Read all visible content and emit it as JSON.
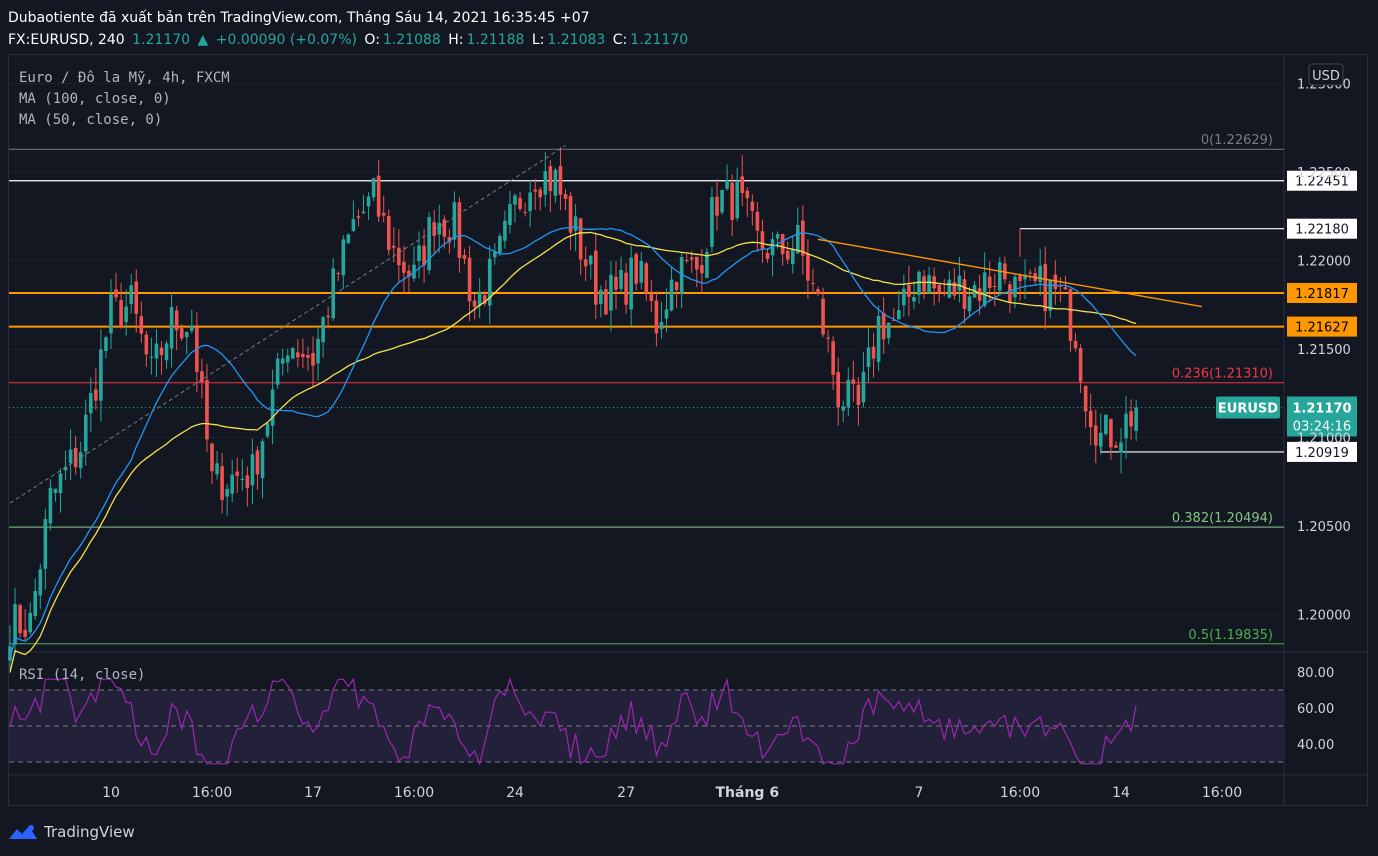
{
  "header": {
    "line1": "Dubaotiente đã xuất bản trên TradingView.com, Tháng Sáu 14, 2021 16:35:45 +07",
    "symbol": "FX:EURUSD, 240",
    "last": "1.21170",
    "change": "+0.00090 (+0.07%)",
    "o_label": "O:",
    "o": "1.21088",
    "h_label": "H:",
    "h": "1.21188",
    "l_label": "L:",
    "l": "1.21083",
    "c_label": "C:",
    "c": "1.21170"
  },
  "legend": {
    "instrument": "Euro / Đô la Mỹ, 4h, FXCM",
    "ma100": "MA (100, close, 0)",
    "ma50": "MA (50, close, 0)",
    "rsi": "RSI (14, close)"
  },
  "currency": "USD",
  "brand": "TradingView",
  "colors": {
    "background": "#131722",
    "up": "#26a69a",
    "down": "#ef5350",
    "ma100": "#f5e04a",
    "ma50": "#2196f3",
    "orange": "#ff9800",
    "rsi": "#9c27b0",
    "fib0": "#787b86",
    "fib236": "#f23645",
    "fib382": "#81c784",
    "fib5": "#4caf50"
  },
  "chart_data": {
    "type": "candlestick",
    "price_axis": {
      "ticks": [
        {
          "value": 1.23,
          "label": "1.23000"
        },
        {
          "value": 1.225,
          "label": "1.22500"
        },
        {
          "value": 1.22,
          "label": "1.22000"
        },
        {
          "value": 1.215,
          "label": "1.21500"
        },
        {
          "value": 1.21,
          "label": "1.21000"
        },
        {
          "value": 1.205,
          "label": "1.20500"
        },
        {
          "value": 1.2,
          "label": "1.20000"
        }
      ]
    },
    "time_axis": [
      "10",
      "16:00",
      "17",
      "16:00",
      "24",
      "27",
      "Tháng 6",
      "7",
      "16:00",
      "14",
      "16:00"
    ],
    "horizontal_levels": [
      {
        "value": 1.22451,
        "label": "1.22451",
        "color": "#ffffff"
      },
      {
        "value": 1.2218,
        "label": "1.22180",
        "color": "#ffffff"
      },
      {
        "value": 1.21817,
        "label": "1.21817",
        "color": "#ff9800"
      },
      {
        "value": 1.21627,
        "label": "1.21627",
        "color": "#ff9800"
      },
      {
        "value": 1.20919,
        "label": "1.20919",
        "color": "#ffffff"
      }
    ],
    "fib_levels": [
      {
        "ratio": "0",
        "value": 1.22629,
        "label": "0(1.22629)"
      },
      {
        "ratio": "0.236",
        "value": 1.2131,
        "label": "0.236(1.21310)"
      },
      {
        "ratio": "0.382",
        "value": 1.20494,
        "label": "0.382(1.20494)"
      },
      {
        "ratio": "0.5",
        "value": 1.19835,
        "label": "0.5(1.19835)"
      }
    ],
    "current_price": {
      "symbol": "EURUSD",
      "value": 1.2117,
      "label": "1.21170",
      "countdown": "03:24:16"
    },
    "rsi": {
      "ticks": [
        {
          "value": 80,
          "label": "80.00"
        },
        {
          "value": 60,
          "label": "60.00"
        },
        {
          "value": 40,
          "label": "40.00"
        }
      ],
      "bands": [
        70,
        50,
        30
      ]
    },
    "anchors": [
      {
        "t": 0,
        "p": 1.1995
      },
      {
        "t": 4,
        "p": 1.1995
      },
      {
        "t": 8,
        "p": 1.2065
      },
      {
        "t": 14,
        "p": 1.2095
      },
      {
        "t": 20,
        "p": 1.217
      },
      {
        "t": 24,
        "p": 1.2175
      },
      {
        "t": 28,
        "p": 1.2135
      },
      {
        "t": 32,
        "p": 1.2165
      },
      {
        "t": 36,
        "p": 1.2165
      },
      {
        "t": 40,
        "p": 1.2075
      },
      {
        "t": 48,
        "p": 1.208
      },
      {
        "t": 55,
        "p": 1.2155
      },
      {
        "t": 60,
        "p": 1.2145
      },
      {
        "t": 64,
        "p": 1.2185
      },
      {
        "t": 68,
        "p": 1.222
      },
      {
        "t": 72,
        "p": 1.2235
      },
      {
        "t": 76,
        "p": 1.2205
      },
      {
        "t": 80,
        "p": 1.219
      },
      {
        "t": 84,
        "p": 1.2225
      },
      {
        "t": 88,
        "p": 1.222
      },
      {
        "t": 92,
        "p": 1.2175
      },
      {
        "t": 96,
        "p": 1.2195
      },
      {
        "t": 100,
        "p": 1.223
      },
      {
        "t": 104,
        "p": 1.225
      },
      {
        "t": 108,
        "p": 1.2245
      },
      {
        "t": 112,
        "p": 1.2215
      },
      {
        "t": 116,
        "p": 1.2185
      },
      {
        "t": 120,
        "p": 1.218
      },
      {
        "t": 124,
        "p": 1.2195
      },
      {
        "t": 128,
        "p": 1.2165
      },
      {
        "t": 132,
        "p": 1.2195
      },
      {
        "t": 136,
        "p": 1.2195
      },
      {
        "t": 140,
        "p": 1.2235
      },
      {
        "t": 144,
        "p": 1.2235
      },
      {
        "t": 148,
        "p": 1.221
      },
      {
        "t": 152,
        "p": 1.2205
      },
      {
        "t": 156,
        "p": 1.221
      },
      {
        "t": 160,
        "p": 1.2175
      },
      {
        "t": 164,
        "p": 1.2125
      },
      {
        "t": 168,
        "p": 1.2115
      },
      {
        "t": 172,
        "p": 1.2165
      },
      {
        "t": 176,
        "p": 1.2165
      },
      {
        "t": 180,
        "p": 1.2195
      },
      {
        "t": 184,
        "p": 1.218
      },
      {
        "t": 188,
        "p": 1.2185
      },
      {
        "t": 192,
        "p": 1.2185
      },
      {
        "t": 196,
        "p": 1.2195
      },
      {
        "t": 200,
        "p": 1.218
      },
      {
        "t": 204,
        "p": 1.2185
      },
      {
        "t": 208,
        "p": 1.218
      },
      {
        "t": 211,
        "p": 1.216
      },
      {
        "t": 213,
        "p": 1.2125
      },
      {
        "t": 216,
        "p": 1.21
      },
      {
        "t": 220,
        "p": 1.2105
      },
      {
        "t": 223,
        "p": 1.2117
      }
    ],
    "trendlines": [
      {
        "from": {
          "t": 0,
          "p": 1.2063
        },
        "to": {
          "t": 110,
          "p": 1.2265
        },
        "style": "dashed"
      },
      {
        "from": {
          "t": 160,
          "p": 1.2212
        },
        "to": {
          "t": 236,
          "p": 1.2174
        },
        "style": "solid"
      }
    ]
  }
}
